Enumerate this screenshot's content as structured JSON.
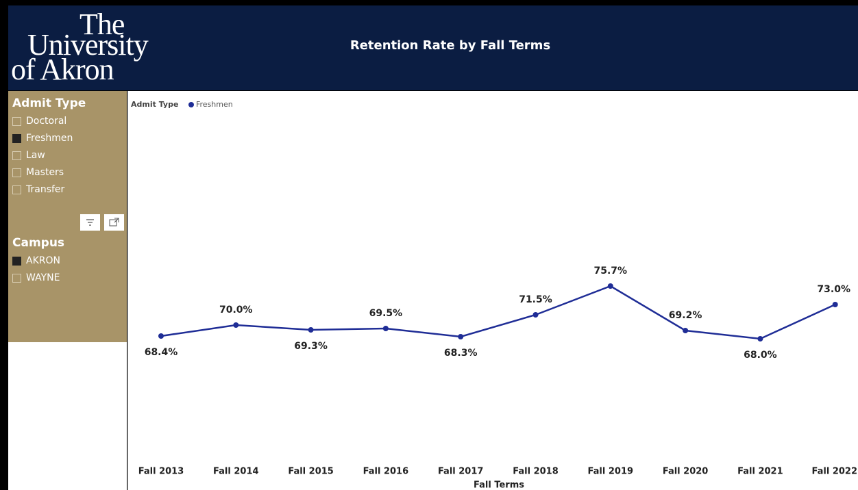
{
  "header": {
    "logo": [
      "The",
      "University",
      "of Akron"
    ],
    "title": "Retention Rate by Fall Terms"
  },
  "slicers": [
    {
      "title": "Admit Type",
      "items": [
        {
          "label": "Doctoral",
          "checked": false
        },
        {
          "label": "Freshmen",
          "checked": true
        },
        {
          "label": "Law",
          "checked": false
        },
        {
          "label": "Masters",
          "checked": false
        },
        {
          "label": "Transfer",
          "checked": false
        }
      ]
    },
    {
      "title": "Campus",
      "items": [
        {
          "label": "AKRON",
          "checked": true
        },
        {
          "label": "WAYNE",
          "checked": false
        }
      ]
    }
  ],
  "chart_data": {
    "type": "line",
    "legend_title": "Admit Type",
    "x_label": "Fall Terms",
    "categories": [
      "Fall 2013",
      "Fall 2014",
      "Fall 2015",
      "Fall 2016",
      "Fall 2017",
      "Fall 2018",
      "Fall 2019",
      "Fall 2020",
      "Fall 2021",
      "Fall 2022"
    ],
    "series": [
      {
        "name": "Freshmen",
        "color": "#1f2d96",
        "values": [
          68.4,
          70.0,
          69.3,
          69.5,
          68.3,
          71.5,
          75.7,
          69.2,
          68.0,
          73.0
        ],
        "value_labels": [
          "68.4%",
          "70.0%",
          "69.3%",
          "69.5%",
          "68.3%",
          "71.5%",
          "75.7%",
          "69.2%",
          "68.0%",
          "73.0%"
        ]
      }
    ],
    "ylim": [
      50,
      100
    ]
  }
}
